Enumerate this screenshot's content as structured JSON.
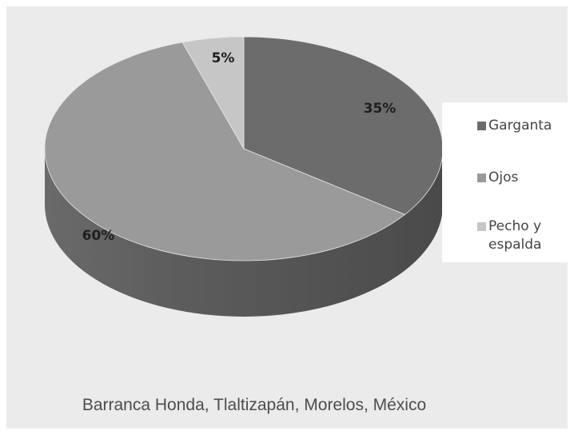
{
  "chart_data": {
    "type": "pie",
    "categories": [
      "Garganta",
      "Ojos",
      "Pecho y espalda"
    ],
    "values": [
      35,
      60,
      5
    ],
    "data_labels": [
      "35%",
      "60%",
      "5%"
    ],
    "colors": [
      "#6c6c6c",
      "#9a9a9a",
      "#c6c6c6"
    ],
    "style": "3d",
    "legend": "right"
  },
  "legend": {
    "items": [
      {
        "label": "Garganta",
        "color": "#6c6c6c"
      },
      {
        "label": "Ojos",
        "color": "#9a9a9a"
      },
      {
        "label_line1": "Pecho y",
        "label_line2": "espalda",
        "color": "#c6c6c6"
      }
    ]
  },
  "caption": "Barranca Honda, Tlaltizapán, Morelos, México"
}
